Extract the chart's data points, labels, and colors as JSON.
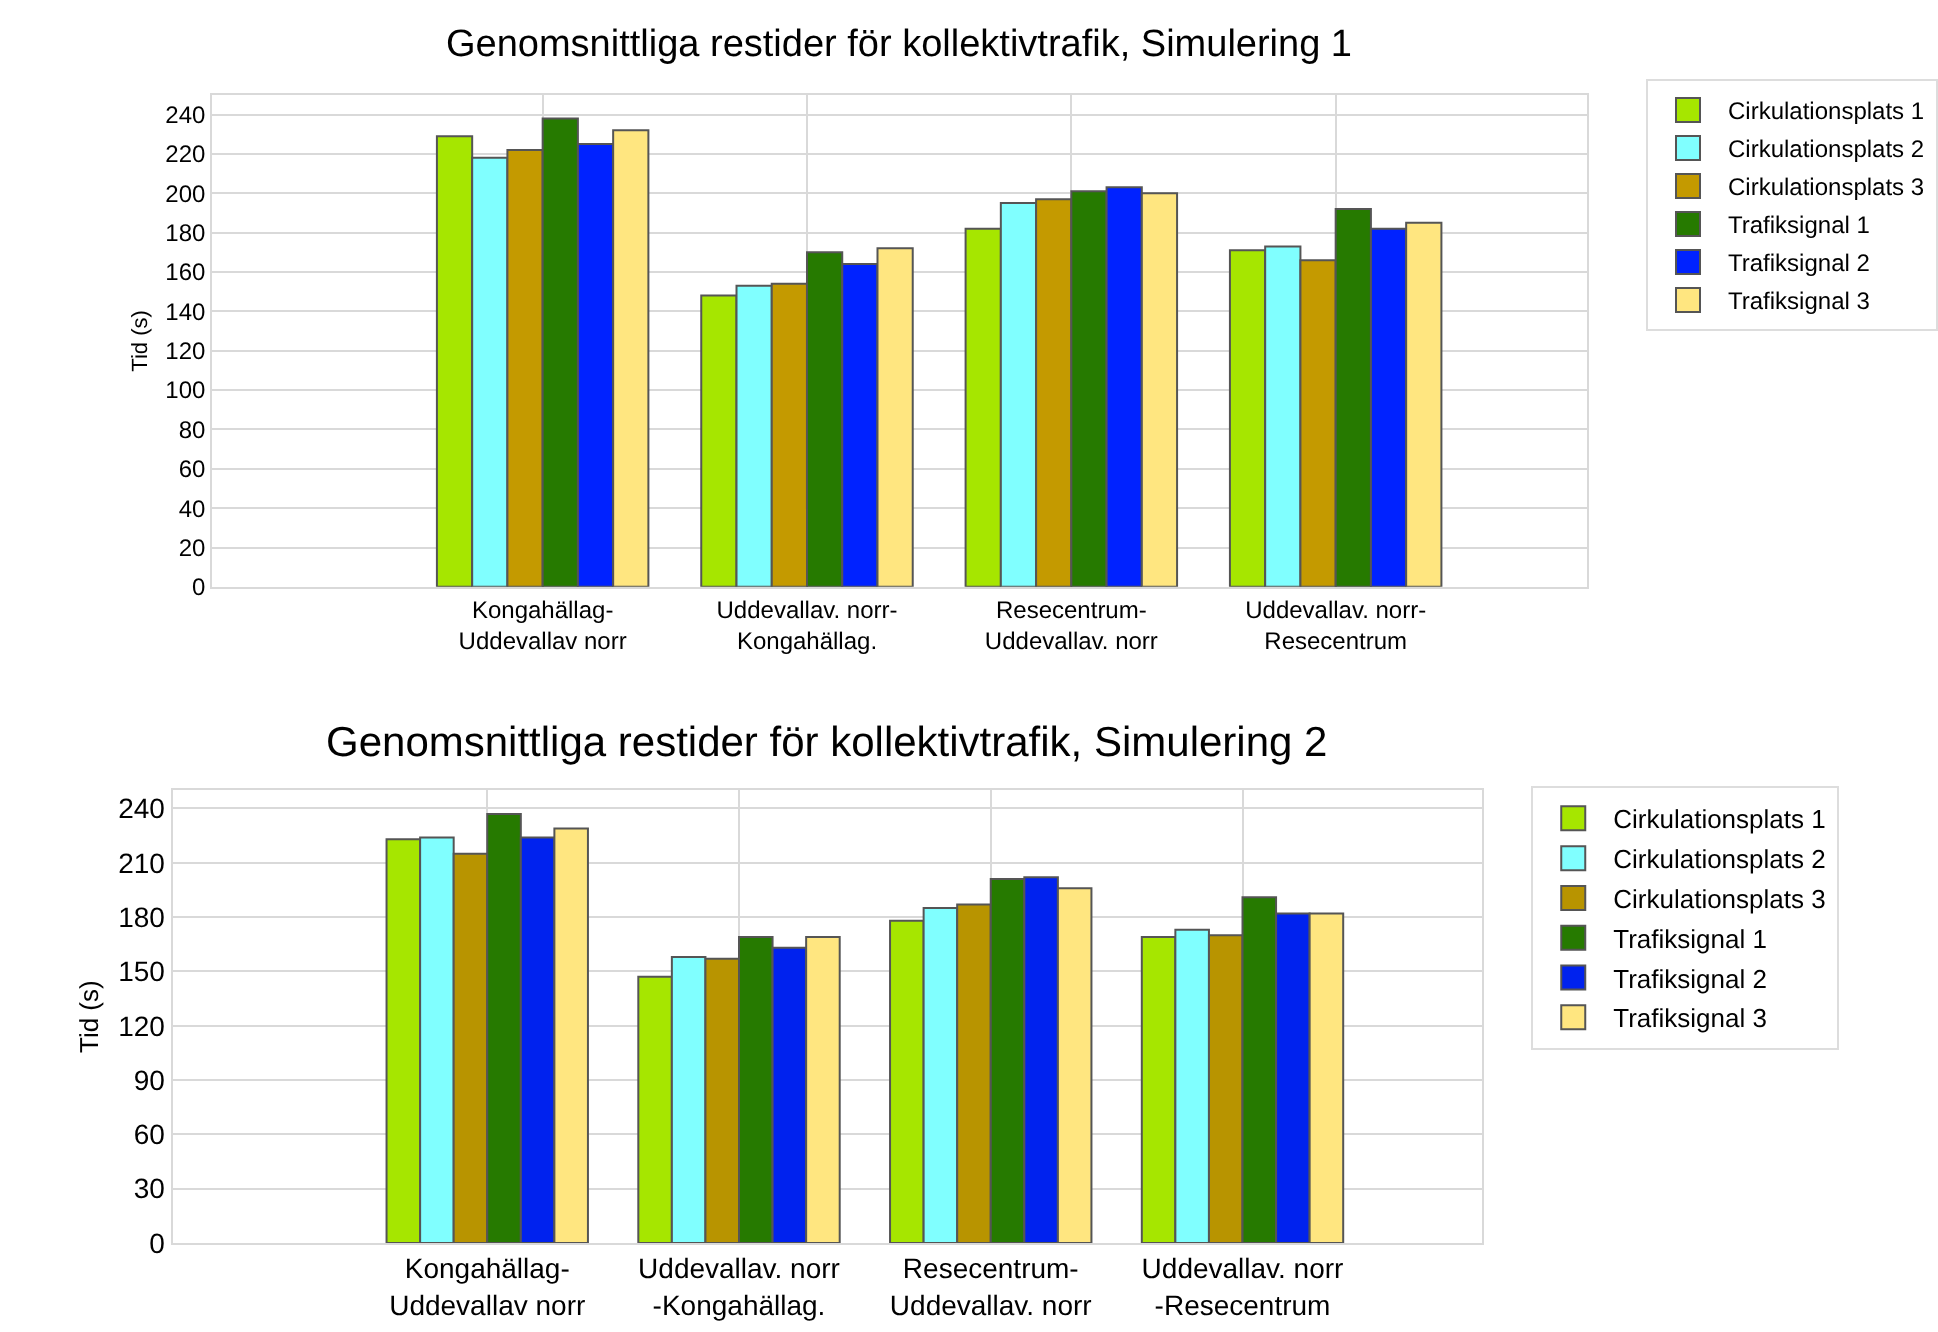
{
  "chart_data": [
    {
      "type": "bar",
      "title": "Genomsnittliga restider för kollektivtrafik, Simulering 1",
      "ylabel": "Tid (s)",
      "categories": [
        "Kongahällag-\nUddevallav norr",
        "Uddevallav. norr-\nKongahällag.",
        "Resecentrum-\nUddevallav. norr",
        "Uddevallav. norr-\nResecentrum"
      ],
      "series": [
        {
          "name": "Cirkulationsplats 1",
          "color": "#a6e600",
          "values": [
            229,
            148,
            182,
            171
          ]
        },
        {
          "name": "Cirkulationsplats 2",
          "color": "#80ffff",
          "values": [
            218,
            153,
            195,
            173
          ]
        },
        {
          "name": "Cirkulationsplats 3",
          "color": "#c49a00",
          "values": [
            222,
            154,
            197,
            166
          ]
        },
        {
          "name": "Trafiksignal 1",
          "color": "#267a00",
          "values": [
            238,
            170,
            201,
            192
          ]
        },
        {
          "name": "Trafiksignal 2",
          "color": "#0022ff",
          "values": [
            225,
            164,
            203,
            182
          ]
        },
        {
          "name": "Trafiksignal 3",
          "color": "#ffe680",
          "values": [
            232,
            172,
            200,
            185
          ]
        }
      ],
      "ylim": [
        0,
        250
      ],
      "yticks": [
        0,
        20,
        40,
        60,
        80,
        100,
        120,
        140,
        160,
        180,
        200,
        220,
        240
      ],
      "grid": true,
      "legend": "top right"
    },
    {
      "type": "bar",
      "title": "Genomsnittliga restider för kollektivtrafik, Simulering 2",
      "ylabel": "Tid (s)",
      "categories": [
        "Kongahällag-\nUddevallav norr",
        "Uddevallav. norr\n-Kongahällag.",
        "Resecentrum-\nUddevallav. norr",
        "Uddevallav. norr\n-Resecentrum"
      ],
      "series": [
        {
          "name": "Cirkulationsplats 1",
          "color": "#a6e600",
          "values": [
            223,
            147,
            178,
            169
          ]
        },
        {
          "name": "Cirkulationsplats 2",
          "color": "#80ffff",
          "values": [
            224,
            158,
            185,
            173
          ]
        },
        {
          "name": "Cirkulationsplats 3",
          "color": "#b89400",
          "values": [
            215,
            157,
            187,
            170
          ]
        },
        {
          "name": "Trafiksignal 1",
          "color": "#267a00",
          "values": [
            237,
            169,
            201,
            191
          ]
        },
        {
          "name": "Trafiksignal 2",
          "color": "#0022ee",
          "values": [
            224,
            163,
            202,
            182
          ]
        },
        {
          "name": "Trafiksignal 3",
          "color": "#ffe680",
          "values": [
            229,
            169,
            196,
            182
          ]
        }
      ],
      "ylim": [
        0,
        250
      ],
      "yticks": [
        0,
        30,
        60,
        90,
        120,
        150,
        180,
        210,
        240
      ],
      "grid": true,
      "legend": "top right"
    }
  ]
}
